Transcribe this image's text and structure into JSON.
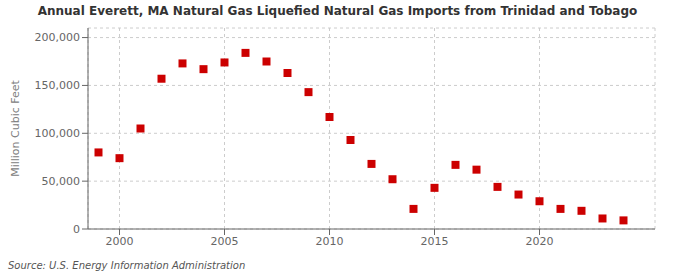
{
  "chart_data": {
    "type": "scatter",
    "title": "Annual Everett, MA Natural Gas Liquefied Natural Gas Imports from Trinidad and Tobago",
    "ylabel": "Million Cubic Feet",
    "annotations": [
      "Source: U.S. Energy Information Administration"
    ],
    "x": [
      1999,
      2000,
      2001,
      2002,
      2003,
      2004,
      2005,
      2006,
      2007,
      2008,
      2009,
      2010,
      2011,
      2012,
      2013,
      2014,
      2015,
      2016,
      2017,
      2018,
      2019,
      2020,
      2021,
      2022,
      2023,
      2024
    ],
    "values": [
      80000,
      74000,
      105000,
      157000,
      173000,
      167000,
      174000,
      184000,
      175000,
      163000,
      143000,
      117000,
      93000,
      68000,
      52000,
      21000,
      43000,
      67000,
      62000,
      44000,
      36000,
      29000,
      21000,
      19000,
      11000,
      9000
    ],
    "color": "#cc0000",
    "marker": "square",
    "xlim": [
      1998.5,
      2025.5
    ],
    "ylim": [
      0,
      210000
    ],
    "xticks": [
      2000,
      2005,
      2010,
      2015,
      2020
    ],
    "yticks": [
      0,
      {
        "value": 50000,
        "label": "50,000"
      },
      {
        "value": 100000,
        "label": "100,000"
      },
      {
        "value": 150000,
        "label": "150,000"
      },
      {
        "value": 200000,
        "label": "200,000"
      }
    ],
    "grid": true
  }
}
